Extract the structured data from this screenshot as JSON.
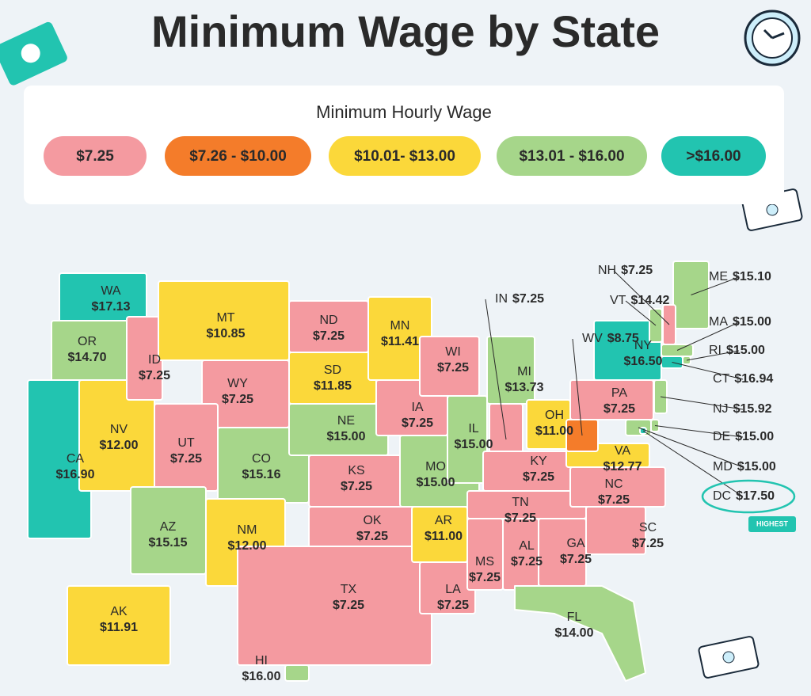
{
  "title": "Minimum Wage by State",
  "legend": {
    "title": "Minimum Hourly Wage",
    "items": [
      {
        "label": "$7.25",
        "color": "#f49aa0"
      },
      {
        "label": "$7.26 - $10.00",
        "color": "#f47c2a"
      },
      {
        "label": "$10.01- $13.00",
        "color": "#fbd83a"
      },
      {
        "label": "$13.01 - $16.00",
        "color": "#a6d68a"
      },
      {
        "label": ">$16.00",
        "color": "#22c4b0"
      }
    ]
  },
  "states": [
    {
      "abbr": "WA",
      "wage": "$17.13",
      "color": "#22c4b0"
    },
    {
      "abbr": "OR",
      "wage": "$14.70",
      "color": "#a6d68a"
    },
    {
      "abbr": "CA",
      "wage": "$16.90",
      "color": "#22c4b0"
    },
    {
      "abbr": "NV",
      "wage": "$12.00",
      "color": "#fbd83a"
    },
    {
      "abbr": "ID",
      "wage": "$7.25",
      "color": "#f49aa0"
    },
    {
      "abbr": "MT",
      "wage": "$10.85",
      "color": "#fbd83a"
    },
    {
      "abbr": "WY",
      "wage": "$7.25",
      "color": "#f49aa0"
    },
    {
      "abbr": "UT",
      "wage": "$7.25",
      "color": "#f49aa0"
    },
    {
      "abbr": "CO",
      "wage": "$15.16",
      "color": "#a6d68a"
    },
    {
      "abbr": "AZ",
      "wage": "$15.15",
      "color": "#a6d68a"
    },
    {
      "abbr": "NM",
      "wage": "$12.00",
      "color": "#fbd83a"
    },
    {
      "abbr": "ND",
      "wage": "$7.25",
      "color": "#f49aa0"
    },
    {
      "abbr": "SD",
      "wage": "$11.85",
      "color": "#fbd83a"
    },
    {
      "abbr": "NE",
      "wage": "$15.00",
      "color": "#a6d68a"
    },
    {
      "abbr": "KS",
      "wage": "$7.25",
      "color": "#f49aa0"
    },
    {
      "abbr": "OK",
      "wage": "$7.25",
      "color": "#f49aa0"
    },
    {
      "abbr": "TX",
      "wage": "$7.25",
      "color": "#f49aa0"
    },
    {
      "abbr": "MN",
      "wage": "$11.41",
      "color": "#fbd83a"
    },
    {
      "abbr": "IA",
      "wage": "$7.25",
      "color": "#f49aa0"
    },
    {
      "abbr": "MO",
      "wage": "$15.00",
      "color": "#a6d68a"
    },
    {
      "abbr": "AR",
      "wage": "$11.00",
      "color": "#fbd83a"
    },
    {
      "abbr": "LA",
      "wage": "$7.25",
      "color": "#f49aa0"
    },
    {
      "abbr": "WI",
      "wage": "$7.25",
      "color": "#f49aa0"
    },
    {
      "abbr": "IL",
      "wage": "$15.00",
      "color": "#a6d68a"
    },
    {
      "abbr": "MI",
      "wage": "$13.73",
      "color": "#a6d68a"
    },
    {
      "abbr": "IN",
      "wage": "$7.25",
      "color": "#f49aa0"
    },
    {
      "abbr": "OH",
      "wage": "$11.00",
      "color": "#fbd83a"
    },
    {
      "abbr": "KY",
      "wage": "$7.25",
      "color": "#f49aa0"
    },
    {
      "abbr": "TN",
      "wage": "$7.25",
      "color": "#f49aa0"
    },
    {
      "abbr": "MS",
      "wage": "$7.25",
      "color": "#f49aa0"
    },
    {
      "abbr": "AL",
      "wage": "$7.25",
      "color": "#f49aa0"
    },
    {
      "abbr": "GA",
      "wage": "$7.25",
      "color": "#f49aa0"
    },
    {
      "abbr": "FL",
      "wage": "$14.00",
      "color": "#a6d68a"
    },
    {
      "abbr": "SC",
      "wage": "$7.25",
      "color": "#f49aa0"
    },
    {
      "abbr": "NC",
      "wage": "$7.25",
      "color": "#f49aa0"
    },
    {
      "abbr": "VA",
      "wage": "$12.77",
      "color": "#fbd83a"
    },
    {
      "abbr": "WV",
      "wage": "$8.75",
      "color": "#f47c2a"
    },
    {
      "abbr": "PA",
      "wage": "$7.25",
      "color": "#f49aa0"
    },
    {
      "abbr": "NY",
      "wage": "$16.50",
      "color": "#22c4b0"
    },
    {
      "abbr": "ME",
      "wage": "$15.10",
      "color": "#a6d68a"
    },
    {
      "abbr": "VT",
      "wage": "$14.42",
      "color": "#a6d68a"
    },
    {
      "abbr": "NH",
      "wage": "$7.25",
      "color": "#f49aa0"
    },
    {
      "abbr": "MA",
      "wage": "$15.00",
      "color": "#a6d68a"
    },
    {
      "abbr": "RI",
      "wage": "$15.00",
      "color": "#a6d68a"
    },
    {
      "abbr": "CT",
      "wage": "$16.94",
      "color": "#22c4b0"
    },
    {
      "abbr": "NJ",
      "wage": "$15.92",
      "color": "#a6d68a"
    },
    {
      "abbr": "DE",
      "wage": "$15.00",
      "color": "#a6d68a"
    },
    {
      "abbr": "MD",
      "wage": "$15.00",
      "color": "#a6d68a"
    },
    {
      "abbr": "DC",
      "wage": "$17.50",
      "color": "#22c4b0"
    },
    {
      "abbr": "AK",
      "wage": "$11.91",
      "color": "#fbd83a"
    },
    {
      "abbr": "HI",
      "wage": "$16.00",
      "color": "#a6d68a"
    }
  ],
  "highest_badge": "HIGHEST"
}
